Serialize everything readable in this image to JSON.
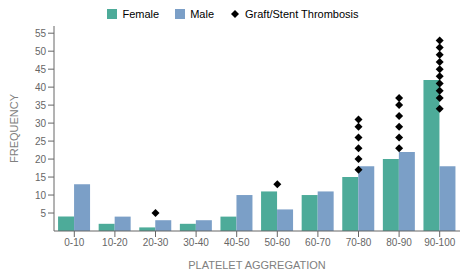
{
  "chart_data": {
    "type": "bar",
    "xlabel": "PLATELET AGGREGATION",
    "ylabel": "FREQUENCY",
    "categories": [
      "0-10",
      "10-20",
      "20-30",
      "30-40",
      "40-50",
      "50-60",
      "60-70",
      "70-80",
      "80-90",
      "90-100"
    ],
    "series": [
      {
        "name": "Female",
        "color": "#4dab99",
        "values": [
          4,
          2,
          1,
          2,
          4,
          11,
          10,
          15,
          20,
          42
        ]
      },
      {
        "name": "Male",
        "color": "#7b9fc7",
        "values": [
          13,
          4,
          3,
          3,
          10,
          6,
          11,
          18,
          22,
          18
        ]
      },
      {
        "name": "Graft/Stent Thrombosis",
        "type": "scatter",
        "color": "#000000",
        "marker": "diamond",
        "points": [
          {
            "x": "20-30",
            "y": 5
          },
          {
            "x": "50-60",
            "y": 13
          },
          {
            "x": "70-80",
            "y": 17
          },
          {
            "x": "70-80",
            "y": 20
          },
          {
            "x": "70-80",
            "y": 23
          },
          {
            "x": "70-80",
            "y": 26
          },
          {
            "x": "70-80",
            "y": 29
          },
          {
            "x": "70-80",
            "y": 31
          },
          {
            "x": "80-90",
            "y": 23
          },
          {
            "x": "80-90",
            "y": 26
          },
          {
            "x": "80-90",
            "y": 29
          },
          {
            "x": "80-90",
            "y": 32
          },
          {
            "x": "80-90",
            "y": 35
          },
          {
            "x": "80-90",
            "y": 37
          },
          {
            "x": "90-100",
            "y": 34
          },
          {
            "x": "90-100",
            "y": 37
          },
          {
            "x": "90-100",
            "y": 39
          },
          {
            "x": "90-100",
            "y": 41
          },
          {
            "x": "90-100",
            "y": 43
          },
          {
            "x": "90-100",
            "y": 45
          },
          {
            "x": "90-100",
            "y": 47
          },
          {
            "x": "90-100",
            "y": 49
          },
          {
            "x": "90-100",
            "y": 51
          },
          {
            "x": "90-100",
            "y": 53
          }
        ]
      }
    ],
    "ylim": [
      0,
      57
    ],
    "yticks": [
      5,
      10,
      15,
      20,
      25,
      30,
      35,
      40,
      45,
      50,
      55
    ],
    "grid": false
  }
}
